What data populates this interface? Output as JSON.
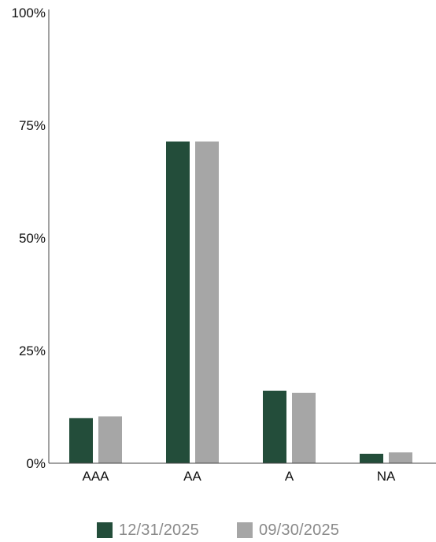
{
  "chart_data": {
    "type": "bar",
    "categories": [
      "AAA",
      "AA",
      "A",
      "NA"
    ],
    "series": [
      {
        "name": "12/31/2025",
        "color": "#234d3a",
        "values": [
          10,
          71.4,
          16.1,
          2.1
        ]
      },
      {
        "name": "09/30/2025",
        "color": "#a6a6a6",
        "values": [
          10.4,
          71.4,
          15.6,
          2.4
        ]
      }
    ],
    "y_ticks": [
      "0%",
      "25%",
      "50%",
      "75%",
      "100%"
    ],
    "ylim": [
      0,
      100
    ],
    "grid": false,
    "legend_position": "bottom"
  }
}
